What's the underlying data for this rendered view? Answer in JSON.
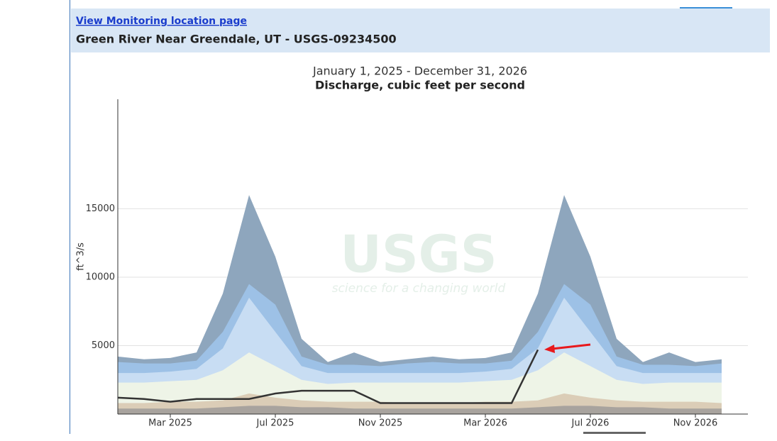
{
  "header": {
    "link": "View Monitoring location page",
    "title": "Green River Near Greendale, UT - USGS-09234500"
  },
  "chart_data": {
    "type": "area",
    "subtitle": "January 1, 2025 - December 31, 2026",
    "title": "Discharge, cubic feet per second",
    "y_label": "ft^3/s",
    "watermark": {
      "logo": "USGS",
      "tagline": "science for a changing world"
    },
    "x": [
      "2025-01",
      "2025-02",
      "2025-03",
      "2025-04",
      "2025-05",
      "2025-06",
      "2025-07",
      "2025-08",
      "2025-09",
      "2025-10",
      "2025-11",
      "2025-12",
      "2026-01",
      "2026-02",
      "2026-03",
      "2026-04",
      "2026-05",
      "2026-06",
      "2026-07",
      "2026-08",
      "2026-09",
      "2026-10",
      "2026-11",
      "2026-12"
    ],
    "xlim": [
      "2025-01",
      "2027-01"
    ],
    "xticks": [
      {
        "value": "2025-03",
        "label": "Mar 2025"
      },
      {
        "value": "2025-07",
        "label": "Jul 2025"
      },
      {
        "value": "2025-11",
        "label": "Nov 2025"
      },
      {
        "value": "2026-03",
        "label": "Mar 2026"
      },
      {
        "value": "2026-07",
        "label": "Jul 2026"
      },
      {
        "value": "2026-11",
        "label": "Nov 2026"
      }
    ],
    "ylim": [
      0,
      23000
    ],
    "yticks": [
      5000,
      10000,
      15000
    ],
    "grid": true,
    "series": [
      {
        "color": "#8ea6bd",
        "values": [
          4200,
          4000,
          4100,
          4500,
          8800,
          16000,
          11500,
          5500,
          3800,
          4500,
          3800,
          4000,
          4200,
          4000,
          4100,
          4500,
          8800,
          16000,
          11500,
          5500,
          3800,
          4500,
          3800,
          4000
        ]
      },
      {
        "color": "#9dc1e6",
        "values": [
          3800,
          3700,
          3700,
          3900,
          6000,
          9500,
          8000,
          4200,
          3600,
          3600,
          3500,
          3700,
          3800,
          3700,
          3700,
          3900,
          6000,
          9500,
          8000,
          4200,
          3600,
          3600,
          3500,
          3700
        ]
      },
      {
        "color": "#c8ddf3",
        "values": [
          3000,
          3000,
          3100,
          3300,
          4800,
          8500,
          6000,
          3500,
          3000,
          3000,
          3000,
          3000,
          3000,
          3000,
          3100,
          3300,
          4800,
          8500,
          6000,
          3500,
          3000,
          3000,
          3000,
          3000
        ]
      },
      {
        "color": "#eef4e7",
        "values": [
          2300,
          2300,
          2400,
          2500,
          3200,
          4500,
          3500,
          2500,
          2200,
          2300,
          2300,
          2300,
          2300,
          2300,
          2400,
          2500,
          3200,
          4500,
          3500,
          2500,
          2200,
          2300,
          2300,
          2300
        ]
      },
      {
        "color": "#dbcdb7",
        "values": [
          800,
          800,
          900,
          900,
          1000,
          1500,
          1200,
          1000,
          900,
          900,
          900,
          800,
          800,
          800,
          900,
          900,
          1000,
          1500,
          1200,
          1000,
          900,
          900,
          900,
          800
        ]
      },
      {
        "color": "#a8a39e",
        "values": [
          400,
          400,
          400,
          400,
          500,
          600,
          600,
          500,
          500,
          400,
          400,
          400,
          400,
          400,
          400,
          400,
          500,
          600,
          600,
          500,
          500,
          400,
          400,
          400
        ]
      },
      {
        "type": "line",
        "color": "#333333",
        "values": [
          1200,
          1100,
          900,
          1100,
          1100,
          1100,
          1500,
          1700,
          1700,
          1700,
          800,
          800,
          800,
          800,
          800,
          800,
          4700,
          null,
          null,
          null,
          null,
          null,
          null,
          null
        ]
      }
    ]
  }
}
